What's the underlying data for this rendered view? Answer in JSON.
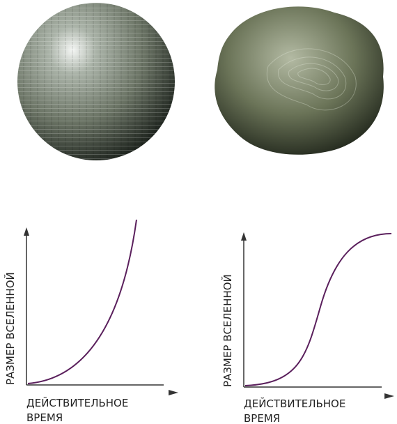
{
  "panels": [
    {
      "y_label": "РАЗМЕР ВСЕЛЕННОЙ",
      "x_label": [
        "ДЕЙСТВИТЕЛЬНОЕ",
        "ВРЕМЯ"
      ]
    },
    {
      "y_label": "РАЗМЕР ВСЕЛЕННОЙ",
      "x_label": [
        "ДЕЙСТВИТЕЛЬНОЕ",
        "ВРЕМЯ"
      ]
    }
  ]
}
